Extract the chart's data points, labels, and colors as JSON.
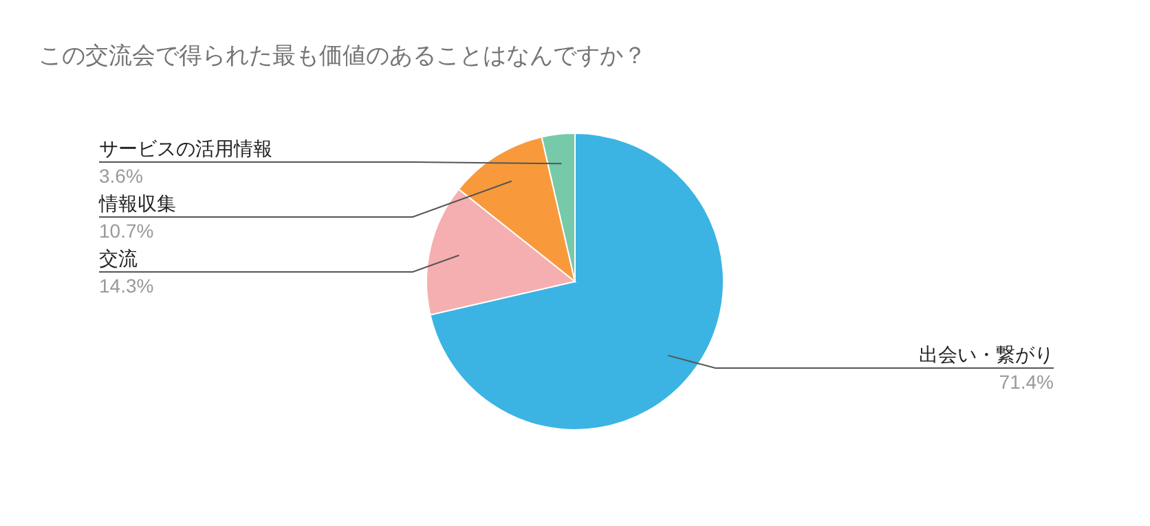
{
  "chart_data": {
    "type": "pie",
    "title": "この交流会で得られた最も価値のあることはなんですか？",
    "categories": [
      "出会い・繋がり",
      "交流",
      "情報収集",
      "サービスの活用情報"
    ],
    "values": [
      71.4,
      14.3,
      10.7,
      3.6
    ],
    "value_labels": [
      "71.4%",
      "14.3%",
      "10.7%",
      "3.6%"
    ],
    "colors": [
      "#3bb4e3",
      "#f5afb0",
      "#f89a3c",
      "#76c9a9"
    ]
  }
}
